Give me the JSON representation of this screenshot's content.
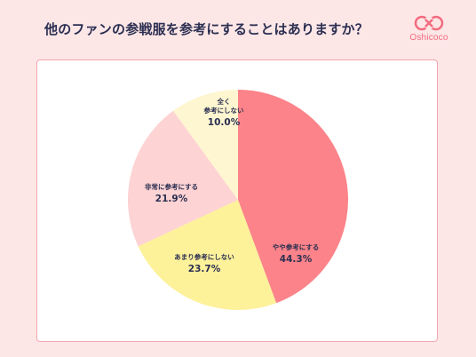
{
  "header": {
    "title": "他のファンの参戦服を参考にすることはありますか？"
  },
  "logo": {
    "text": "Oshicoco",
    "color": "#f26b7e"
  },
  "chart_data": {
    "type": "pie",
    "title": "他のファンの参戦服を参考にすることはありますか？",
    "slices": [
      {
        "label": "やや参考にする",
        "value": 44.3,
        "display": "44.3%",
        "color": "#fb8389"
      },
      {
        "label": "あまり参考にしない",
        "value": 23.7,
        "display": "23.7%",
        "color": "#fdf19a"
      },
      {
        "label": "非常に参考にする",
        "value": 21.9,
        "display": "21.9%",
        "color": "#fdd3d3"
      },
      {
        "label": "全く 参考にしない",
        "label_lines": [
          "全く",
          "参考にしない"
        ],
        "value": 10.0,
        "display": "10.0%",
        "color": "#fef6d0"
      }
    ],
    "start_angle_deg": 0,
    "direction": "clockwise"
  }
}
